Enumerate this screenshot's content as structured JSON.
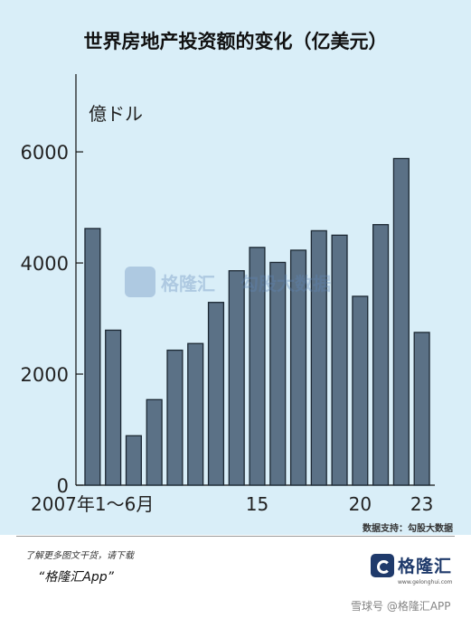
{
  "header": {
    "title": "世界房地产投资额的变化（亿美元）"
  },
  "chart_data": {
    "type": "bar",
    "unit_label": "億ドル",
    "x": [
      2007,
      2008,
      2009,
      2010,
      2011,
      2012,
      2013,
      2014,
      2015,
      2016,
      2017,
      2018,
      2019,
      2020,
      2021,
      2022,
      2023
    ],
    "x_tick_labels": [
      {
        "x": 2007,
        "text": "2007年1～6月"
      },
      {
        "x": 2015,
        "text": "15"
      },
      {
        "x": 2020,
        "text": "20"
      },
      {
        "x": 2023,
        "text": "23"
      }
    ],
    "values": [
      4620,
      2790,
      890,
      1540,
      2430,
      2550,
      3290,
      3860,
      4280,
      4010,
      4230,
      4580,
      4500,
      3400,
      4690,
      5880,
      2750
    ],
    "y_ticks": [
      0,
      2000,
      4000,
      6000
    ],
    "ylim": [
      0,
      7400
    ],
    "grid": false,
    "bar_color": "#5b7186"
  },
  "source": "数据支持：勾股大数据",
  "watermark": {
    "brand": "格隆汇",
    "domain": "www.gelonghui.com",
    "second": "勾股大数据",
    "second_domain": "www.gogudata.com"
  },
  "promo": {
    "line": "了解更多图文干货，请下载",
    "app": "“格隆汇App”"
  },
  "logo": {
    "name": "格隆汇",
    "domain": "www.gelonghui.com"
  },
  "footer_mark": "雪球号 @格隆汇APP"
}
